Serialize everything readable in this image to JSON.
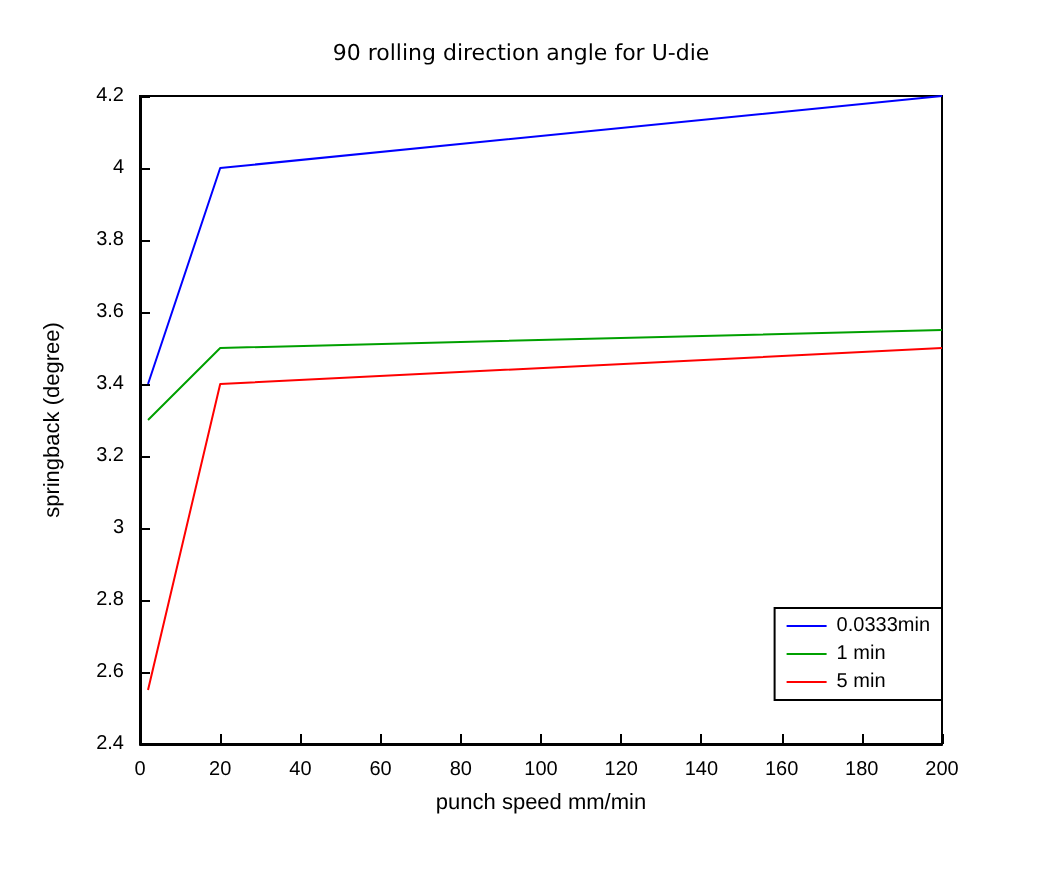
{
  "chart_data": {
    "type": "line",
    "title": "90 rolling direction angle for U-die",
    "xlabel": "punch speed mm/min",
    "ylabel": "springback (degree)",
    "x": [
      2,
      20,
      200
    ],
    "series": [
      {
        "name": "0.0333min",
        "color": "#0000ff",
        "values": [
          3.4,
          4.0,
          4.2
        ]
      },
      {
        "name": "1 min",
        "color": "#00a000",
        "values": [
          3.3,
          3.5,
          3.55
        ]
      },
      {
        "name": "5 min",
        "color": "#ff0000",
        "values": [
          2.55,
          3.4,
          3.5
        ]
      }
    ],
    "xlim": [
      0,
      200
    ],
    "xticks": [
      0,
      20,
      40,
      60,
      80,
      100,
      120,
      140,
      160,
      180,
      200
    ],
    "ylim": [
      2.4,
      4.2
    ],
    "yticks": [
      2.4,
      2.6,
      2.8,
      3,
      3.2,
      3.4,
      3.6,
      3.8,
      4,
      4.2
    ],
    "grid": false,
    "legend": "bottom right",
    "marker": "none",
    "line_style": "solid"
  }
}
